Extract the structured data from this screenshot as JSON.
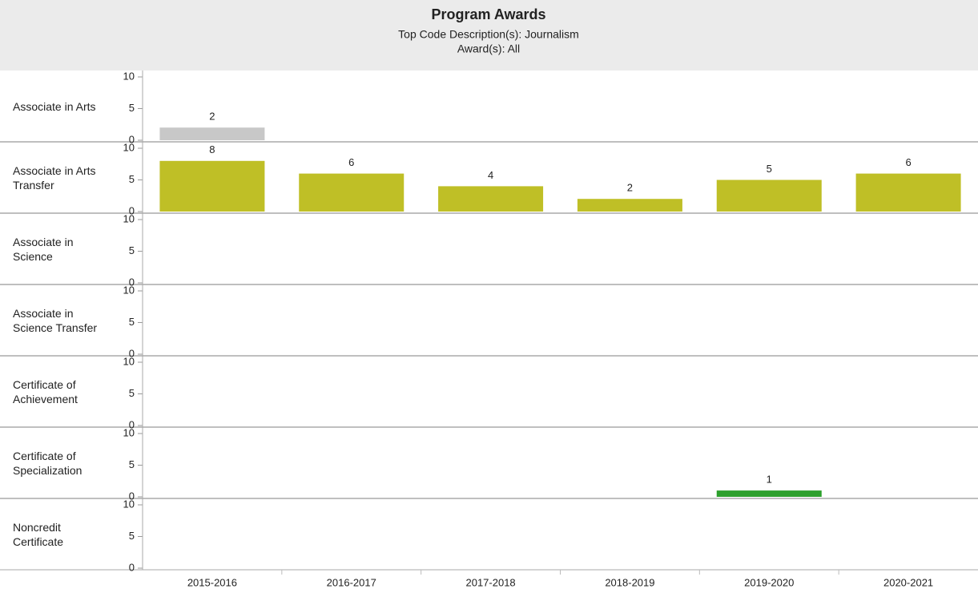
{
  "chart_data": {
    "type": "bar",
    "title": "Program Awards",
    "subtitle": [
      "Top Code Description(s): Journalism",
      "Award(s): All"
    ],
    "categories": [
      "2015-2016",
      "2016-2017",
      "2017-2018",
      "2018-2019",
      "2019-2020",
      "2020-2021"
    ],
    "series": [
      {
        "name": "Associate in Arts",
        "color": "#c8c8c8",
        "values": [
          2,
          null,
          null,
          null,
          null,
          null
        ]
      },
      {
        "name": "Associate in Arts Transfer",
        "color": "#bfbf26",
        "values": [
          8,
          6,
          4,
          2,
          5,
          6
        ]
      },
      {
        "name": "Associate in Science",
        "color": "#bfbf26",
        "values": [
          null,
          null,
          null,
          null,
          null,
          null
        ]
      },
      {
        "name": "Associate in Science Transfer",
        "color": "#bfbf26",
        "values": [
          null,
          null,
          null,
          null,
          null,
          null
        ]
      },
      {
        "name": "Certificate of Achievement",
        "color": "#bfbf26",
        "values": [
          null,
          null,
          null,
          null,
          null,
          null
        ]
      },
      {
        "name": "Certificate of Specialization",
        "color": "#2ca02c",
        "values": [
          null,
          null,
          null,
          null,
          1,
          null
        ]
      },
      {
        "name": "Noncredit Certificate",
        "color": "#2ca02c",
        "values": [
          null,
          null,
          null,
          null,
          null,
          null
        ]
      }
    ],
    "ylim": [
      0,
      10
    ],
    "yticks": [
      0,
      5,
      10
    ]
  }
}
